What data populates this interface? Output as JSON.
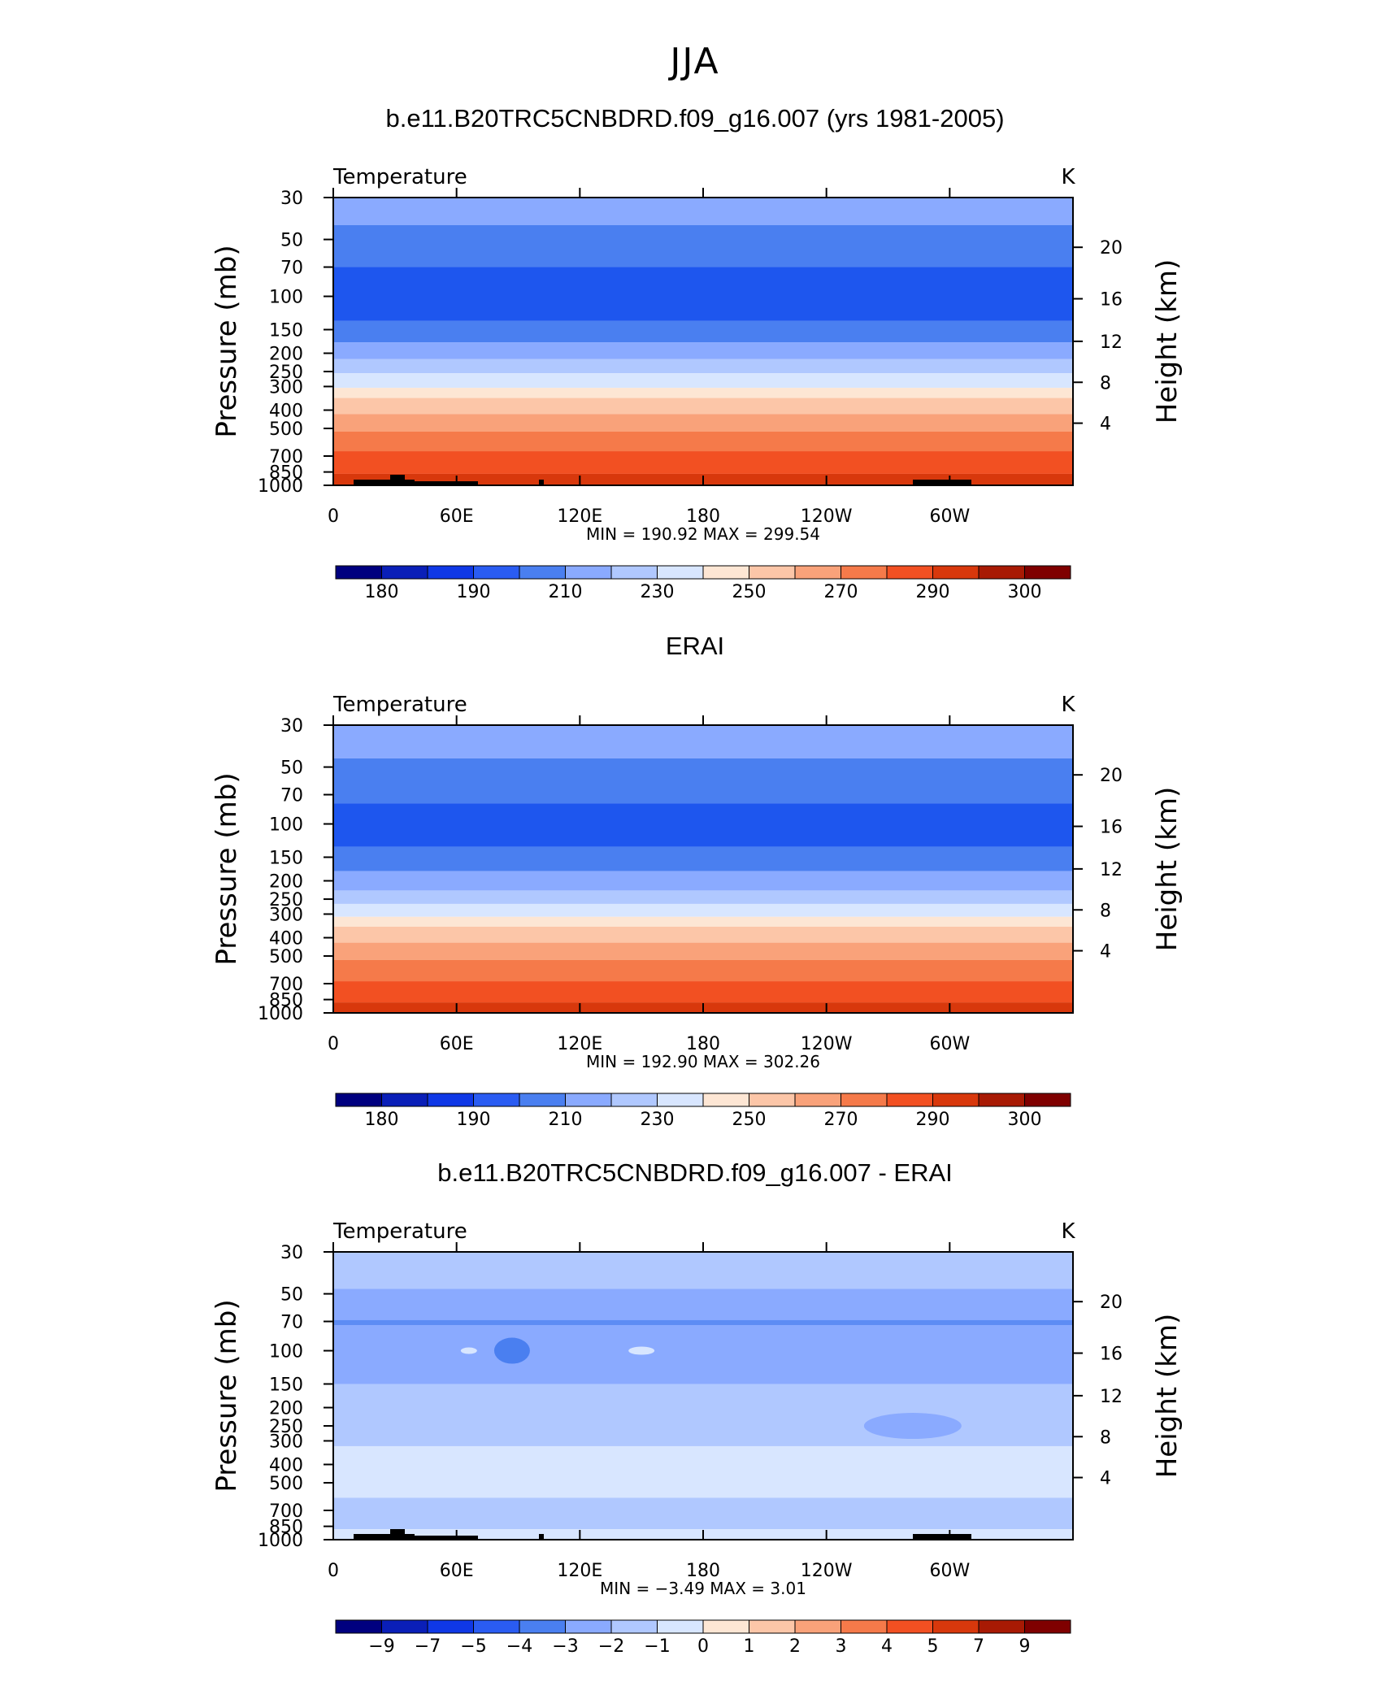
{
  "main_title": "JJA",
  "chart_data": [
    {
      "type": "heatmap",
      "title": "b.e11.B20TRC5CNBDRD.f09_g16.007 (yrs 1981-2005)",
      "variable_label": "Temperature",
      "units": "K",
      "ylabel": "Pressure (mb)",
      "ylabel_right": "Height (km)",
      "x_ticks": [
        "0",
        "60E",
        "120E",
        "180",
        "120W",
        "60W"
      ],
      "y_ticks": [
        "30",
        "50",
        "70",
        "100",
        "150",
        "200",
        "250",
        "300",
        "400",
        "500",
        "700",
        "850",
        "1000"
      ],
      "y_right_ticks": [
        "20",
        "16",
        "12",
        "8",
        "4"
      ],
      "ylim": [
        1000,
        30
      ],
      "y_scale": "log",
      "stats": "MIN = 190.92 MAX = 299.54",
      "min": 190.92,
      "max": 299.54,
      "colorbar_labels": [
        "180",
        "190",
        "210",
        "230",
        "250",
        "270",
        "290",
        "300"
      ],
      "layers": [
        {
          "top": 30,
          "bottom": 42,
          "color": "#8aaaff"
        },
        {
          "top": 42,
          "bottom": 70,
          "color": "#4a7ff0"
        },
        {
          "top": 70,
          "bottom": 135,
          "color": "#1e56ee"
        },
        {
          "top": 135,
          "bottom": 175,
          "color": "#4a7ff0"
        },
        {
          "top": 175,
          "bottom": 215,
          "color": "#8aaaff"
        },
        {
          "top": 215,
          "bottom": 255,
          "color": "#b0c8ff"
        },
        {
          "top": 255,
          "bottom": 305,
          "color": "#d8e6ff"
        },
        {
          "top": 305,
          "bottom": 345,
          "color": "#fde6d4"
        },
        {
          "top": 345,
          "bottom": 420,
          "color": "#fcc6a8"
        },
        {
          "top": 420,
          "bottom": 520,
          "color": "#f9a27a"
        },
        {
          "top": 520,
          "bottom": 660,
          "color": "#f57a4a"
        },
        {
          "top": 660,
          "bottom": 870,
          "color": "#f25022"
        },
        {
          "top": 870,
          "bottom": 1000,
          "color": "#d8380c"
        }
      ]
    },
    {
      "type": "heatmap",
      "title": "ERAI",
      "variable_label": "Temperature",
      "units": "K",
      "ylabel": "Pressure (mb)",
      "ylabel_right": "Height (km)",
      "x_ticks": [
        "0",
        "60E",
        "120E",
        "180",
        "120W",
        "60W"
      ],
      "y_ticks": [
        "30",
        "50",
        "70",
        "100",
        "150",
        "200",
        "250",
        "300",
        "400",
        "500",
        "700",
        "850",
        "1000"
      ],
      "y_right_ticks": [
        "20",
        "16",
        "12",
        "8",
        "4"
      ],
      "ylim": [
        1000,
        30
      ],
      "y_scale": "log",
      "stats": "MIN = 192.90 MAX = 302.26",
      "min": 192.9,
      "max": 302.26,
      "colorbar_labels": [
        "180",
        "190",
        "210",
        "230",
        "250",
        "270",
        "290",
        "300"
      ],
      "layers": [
        {
          "top": 30,
          "bottom": 45,
          "color": "#8aaaff"
        },
        {
          "top": 45,
          "bottom": 78,
          "color": "#4a7ff0"
        },
        {
          "top": 78,
          "bottom": 132,
          "color": "#1e56ee"
        },
        {
          "top": 132,
          "bottom": 178,
          "color": "#4a7ff0"
        },
        {
          "top": 178,
          "bottom": 225,
          "color": "#8aaaff"
        },
        {
          "top": 225,
          "bottom": 265,
          "color": "#b0c8ff"
        },
        {
          "top": 265,
          "bottom": 310,
          "color": "#d8e6ff"
        },
        {
          "top": 310,
          "bottom": 350,
          "color": "#fde6d4"
        },
        {
          "top": 350,
          "bottom": 425,
          "color": "#fcc6a8"
        },
        {
          "top": 425,
          "bottom": 525,
          "color": "#f9a27a"
        },
        {
          "top": 525,
          "bottom": 680,
          "color": "#f57a4a"
        },
        {
          "top": 680,
          "bottom": 880,
          "color": "#f25022"
        },
        {
          "top": 880,
          "bottom": 1000,
          "color": "#d8380c"
        }
      ]
    },
    {
      "type": "heatmap",
      "title": "b.e11.B20TRC5CNBDRD.f09_g16.007 - ERAI",
      "variable_label": "Temperature",
      "units": "K",
      "ylabel": "Pressure (mb)",
      "ylabel_right": "Height (km)",
      "x_ticks": [
        "0",
        "60E",
        "120E",
        "180",
        "120W",
        "60W"
      ],
      "y_ticks": [
        "30",
        "50",
        "70",
        "100",
        "150",
        "200",
        "250",
        "300",
        "400",
        "500",
        "700",
        "850",
        "1000"
      ],
      "y_right_ticks": [
        "20",
        "16",
        "12",
        "8",
        "4"
      ],
      "ylim": [
        1000,
        30
      ],
      "y_scale": "log",
      "stats": "MIN = −3.49 MAX = 3.01",
      "min": -3.49,
      "max": 3.01,
      "colorbar_labels": [
        "−9",
        "−7",
        "−5",
        "−4",
        "−3",
        "−2",
        "−1",
        "0",
        "1",
        "2",
        "3",
        "4",
        "5",
        "7",
        "9"
      ],
      "layers": [
        {
          "top": 30,
          "bottom": 47,
          "color": "#b0c8ff"
        },
        {
          "top": 47,
          "bottom": 150,
          "color": "#8aaaff"
        },
        {
          "top": 150,
          "bottom": 320,
          "color": "#b0c8ff"
        },
        {
          "top": 320,
          "bottom": 600,
          "color": "#d8e6ff"
        },
        {
          "top": 600,
          "bottom": 880,
          "color": "#b0c8ff"
        },
        {
          "top": 880,
          "bottom": 1000,
          "color": "#d8e6ff"
        }
      ]
    }
  ],
  "colorbar_colors": [
    "#00007f",
    "#0a1fb8",
    "#0f38e6",
    "#2a5cf2",
    "#4a7ff0",
    "#8aaaff",
    "#b0c8ff",
    "#d8e6ff",
    "#fde6d4",
    "#fcc6a8",
    "#f9a27a",
    "#f57a4a",
    "#f25022",
    "#d8380c",
    "#a81a04",
    "#7f0000"
  ]
}
